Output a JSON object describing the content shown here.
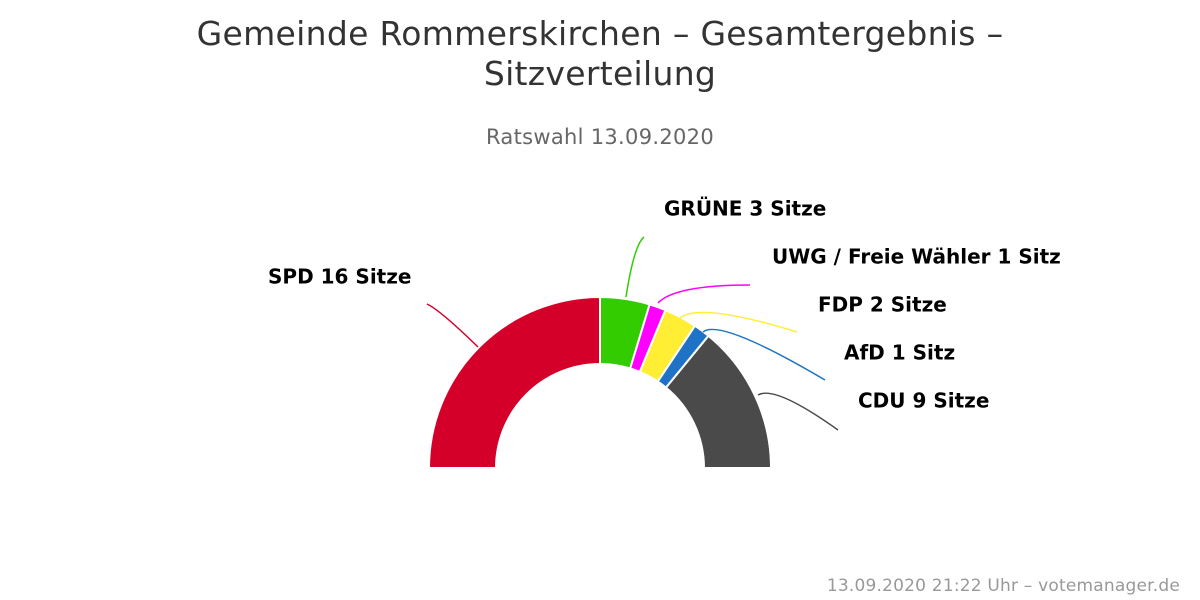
{
  "chart_data": {
    "type": "pie",
    "variant": "semicircle-donut",
    "title": "Gemeinde Rommerskirchen – Gesamtergebnis – Sitzverteilung",
    "subtitle": "Ratswahl 13.09.2020",
    "slices": [
      {
        "name": "SPD",
        "value": 16,
        "label": "SPD 16 Sitze",
        "color": "#d50029"
      },
      {
        "name": "GRÜNE",
        "value": 3,
        "label": "GRÜNE 3 Sitze",
        "color": "#33cc00"
      },
      {
        "name": "UWG / Freie Wähler",
        "value": 1,
        "label": "UWG / Freie Wähler 1 Sitz",
        "color": "#ff00ff"
      },
      {
        "name": "FDP",
        "value": 2,
        "label": "FDP 2 Sitze",
        "color": "#ffee33"
      },
      {
        "name": "AfD",
        "value": 1,
        "label": "AfD 1 Sitz",
        "color": "#1e73c6"
      },
      {
        "name": "CDU",
        "value": 9,
        "label": "CDU 9 Sitze",
        "color": "#4a4a4a"
      }
    ]
  },
  "credit": "13.09.2020 21:22 Uhr – votemanager.de"
}
